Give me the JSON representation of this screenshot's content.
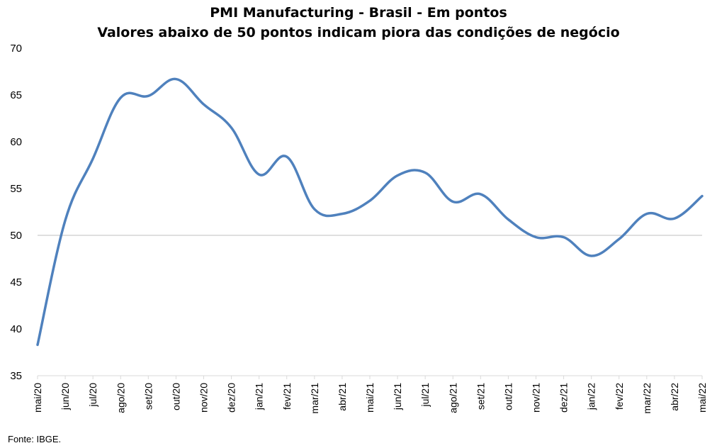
{
  "chart_data": {
    "type": "line",
    "title": "PMI Manufacturing - Brasil - Em pontos",
    "subtitle": "Valores abaixo de 50 pontos indicam piora das condições de negócio",
    "categories": [
      "mai/20",
      "jun/20",
      "jul/20",
      "ago/20",
      "set/20",
      "out/20",
      "nov/20",
      "dez/20",
      "jan/21",
      "fev/21",
      "mar/21",
      "abr/21",
      "mai/21",
      "jun/21",
      "jul/21",
      "ago/21",
      "set/21",
      "out/21",
      "nov/21",
      "dez/21",
      "jan/22",
      "fev/22",
      "mar/22",
      "abr/22",
      "mai/22"
    ],
    "series": [
      {
        "values": [
          38.3,
          51.6,
          58.2,
          64.7,
          64.9,
          66.7,
          64.0,
          61.5,
          56.5,
          58.4,
          52.8,
          52.3,
          53.7,
          56.4,
          56.7,
          53.6,
          54.4,
          51.7,
          49.8,
          49.8,
          47.8,
          49.6,
          52.3,
          51.8,
          54.2
        ],
        "color": "#4f81bd"
      }
    ],
    "ylim": [
      35,
      70
    ],
    "yticks": [
      35,
      40,
      45,
      50,
      55,
      60,
      65,
      70
    ],
    "reference_line": 50,
    "grid": false
  },
  "source": "Fonte: IBGE."
}
